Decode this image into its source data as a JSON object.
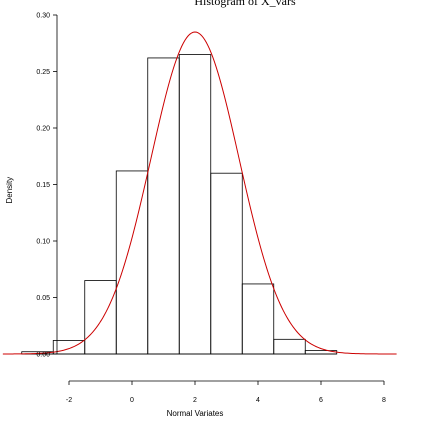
{
  "chart_data": {
    "type": "bar",
    "title": "Histogram of X_vars",
    "xlabel": "Normal Variates",
    "ylabel": "Density",
    "xlim": [
      -4.1,
      8.6
    ],
    "ylim": [
      0.0,
      0.3
    ],
    "x_ticks": [
      -2,
      0,
      2,
      4,
      6,
      8
    ],
    "x_tick_labels": [
      "-2",
      "0",
      "2",
      "4",
      "6",
      "8"
    ],
    "y_ticks": [
      0.0,
      0.05,
      0.1,
      0.15,
      0.2,
      0.25,
      0.3
    ],
    "y_tick_labels": [
      "0.00",
      "0.05",
      "0.10",
      "0.15",
      "0.20",
      "0.25",
      "0.30"
    ],
    "bins": [
      {
        "start": -3.5,
        "end": -2.5,
        "density": 0.002
      },
      {
        "start": -2.5,
        "end": -1.5,
        "density": 0.012
      },
      {
        "start": -1.5,
        "end": -0.5,
        "density": 0.065
      },
      {
        "start": -0.5,
        "end": 0.5,
        "density": 0.162
      },
      {
        "start": 0.5,
        "end": 1.5,
        "density": 0.262
      },
      {
        "start": 1.5,
        "end": 2.5,
        "density": 0.265
      },
      {
        "start": 2.5,
        "end": 3.5,
        "density": 0.16
      },
      {
        "start": 3.5,
        "end": 4.5,
        "density": 0.062
      },
      {
        "start": 4.5,
        "end": 5.5,
        "density": 0.013
      },
      {
        "start": 5.5,
        "end": 6.5,
        "density": 0.003
      }
    ],
    "density_curve": {
      "mean": 2.0,
      "sd": 1.4
    },
    "colors": {
      "bars_stroke": "#000000",
      "curve": "#cc0000",
      "axis": "#000000"
    },
    "grid": false
  }
}
